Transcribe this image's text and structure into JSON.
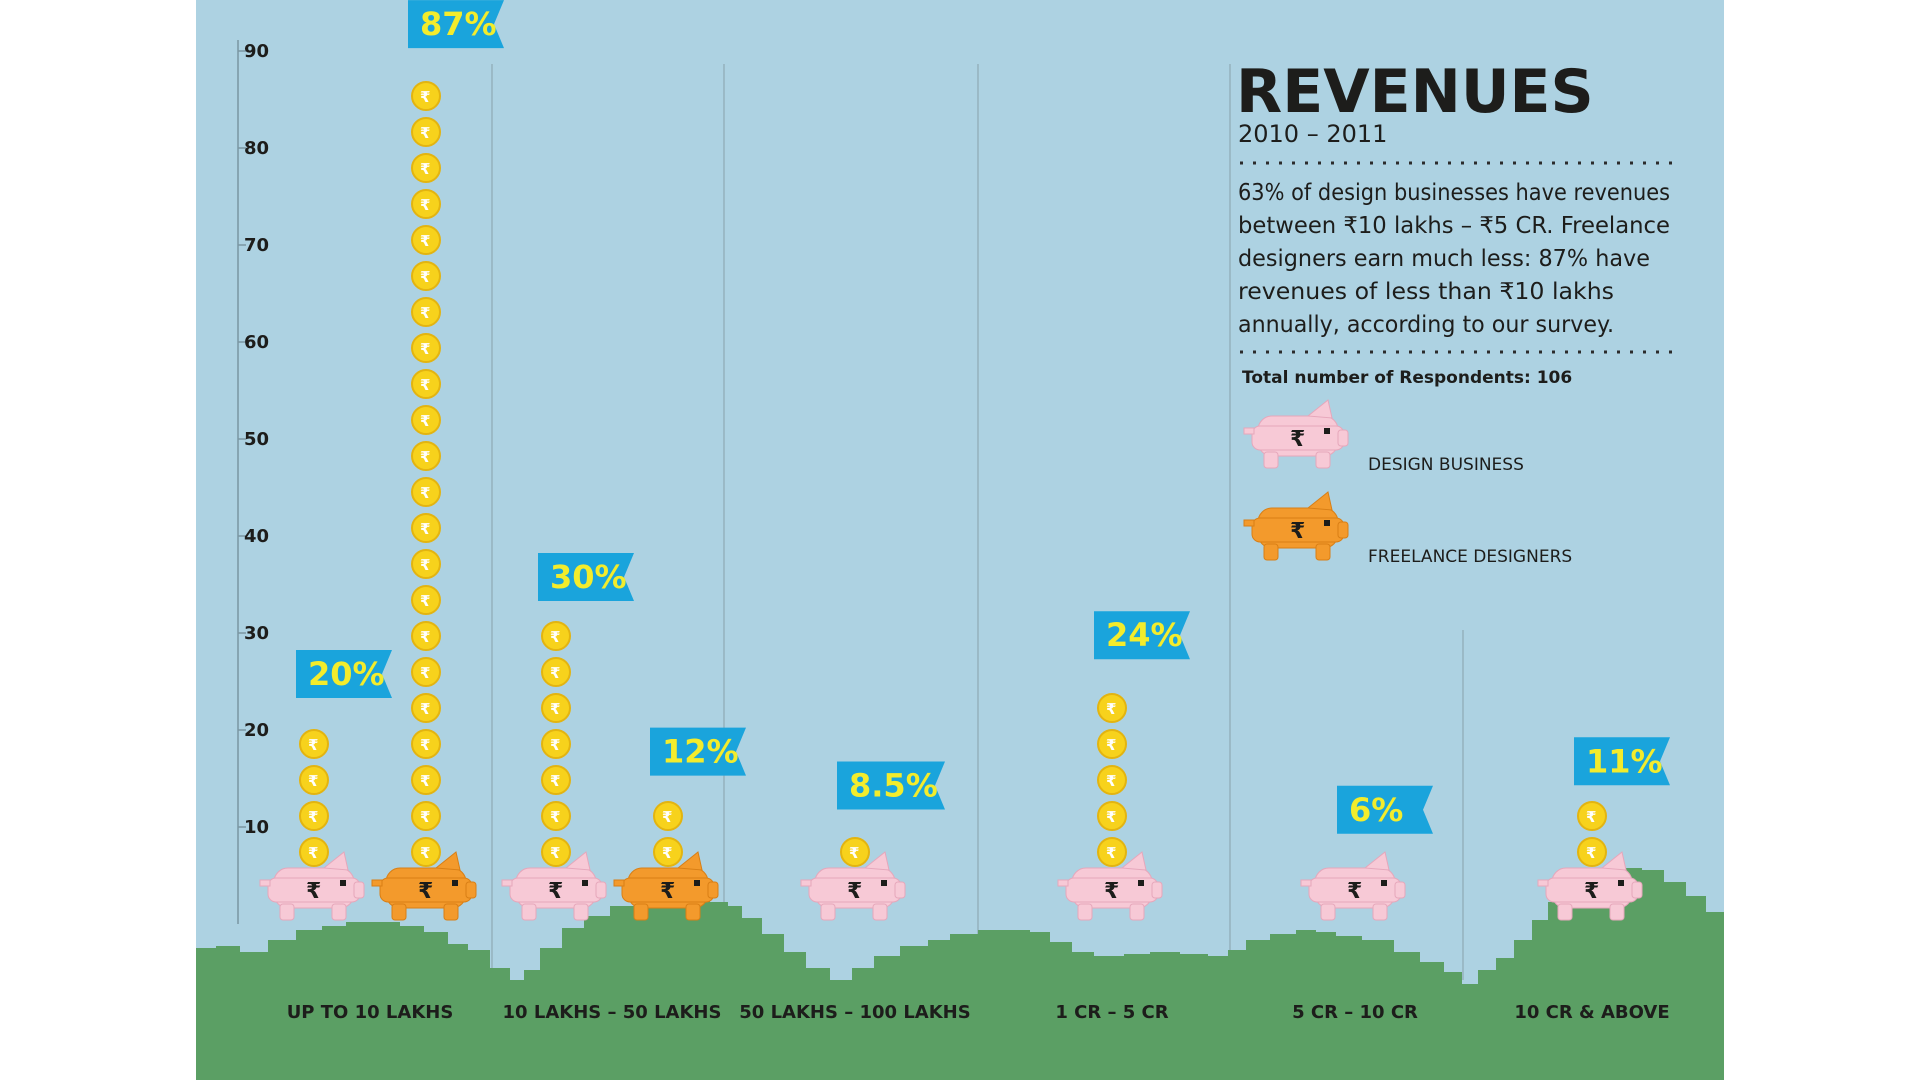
{
  "chart_data": {
    "type": "bar",
    "title": "REVENUES",
    "subtitle": "2010 – 2011",
    "description": [
      "63% of design businesses have revenues",
      "between ₹10 lakhs – ₹5 CR. Freelance",
      "designers earn much less: 87% have",
      "revenues of less than ₹10 lakhs",
      "annually, according to our survey."
    ],
    "respondents": "Total number of Respondents: 106",
    "y_ticks": [
      "90",
      "80",
      "70",
      "60",
      "50",
      "40",
      "30",
      "20",
      "10"
    ],
    "ylim": [
      0,
      90
    ],
    "categories": [
      "UP TO 10 LAKHS",
      "10 LAKHS – 50 LAKHS",
      "50 LAKHS – 100 LAKHS",
      "1 CR – 5 CR",
      "5 CR – 10 CR",
      "10 CR & ABOVE"
    ],
    "series": [
      {
        "name": "DESIGN BUSINESS",
        "values": [
          20,
          30,
          8.5,
          24,
          6,
          11
        ],
        "labels": [
          "20%",
          "30%",
          "8.5%",
          "24%",
          "6%",
          "11%"
        ],
        "color": "#f7c9d6"
      },
      {
        "name": "FREELANCE DESIGNERS",
        "values": [
          87,
          12,
          null,
          null,
          null,
          null
        ],
        "labels": [
          "87%",
          "12%",
          "",
          "",
          "",
          ""
        ],
        "color": "#f39a2c"
      }
    ],
    "currency_symbol": "₹",
    "colors": {
      "sky": "#add2e2",
      "grass": "#5b9f64",
      "label_bg": "#1aa4dc",
      "label_text": "#f3ec2c",
      "coin": "#f7d21c",
      "coin_edge": "#e3b410",
      "text": "#1d1d1b"
    }
  }
}
